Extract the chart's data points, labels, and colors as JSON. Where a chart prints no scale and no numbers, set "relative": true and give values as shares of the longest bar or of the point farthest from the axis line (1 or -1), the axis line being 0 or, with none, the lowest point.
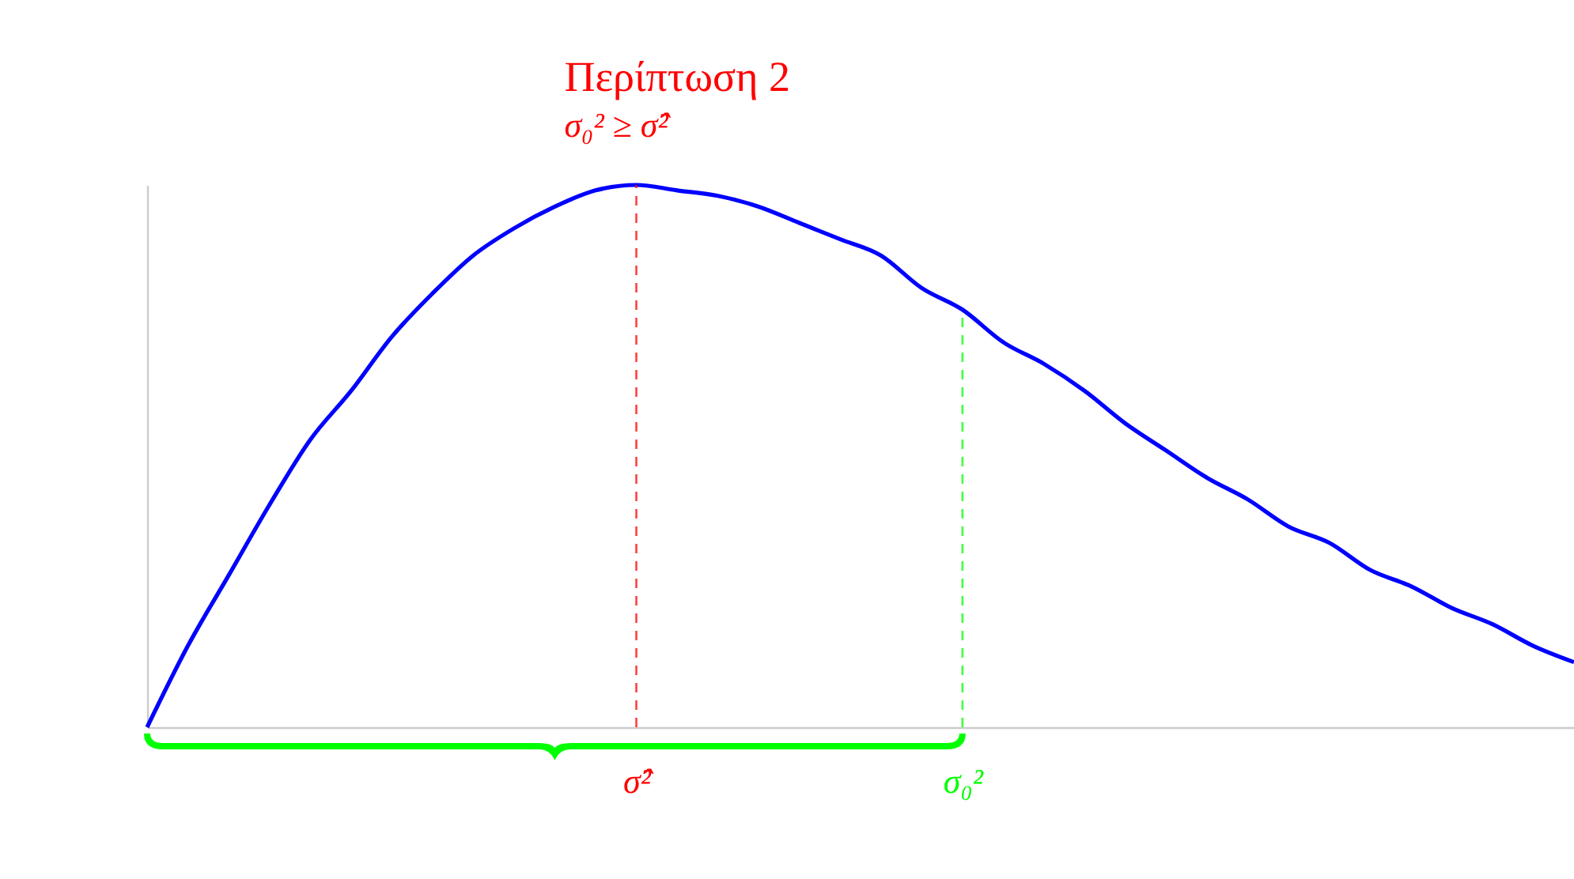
{
  "chart_data": {
    "type": "line",
    "title": "Περίπτωση 2",
    "subtitle": "σ₀² ≥ σ̂²",
    "relative": true,
    "categories": [
      null,
      null,
      null,
      null,
      null,
      null,
      null,
      null,
      null,
      null,
      null,
      null,
      "σ̂²",
      null,
      null,
      null,
      null,
      null,
      null,
      null,
      "σ₀²",
      null,
      null,
      null,
      null,
      null,
      null,
      null,
      null,
      null,
      null,
      null,
      null,
      null,
      null,
      null
    ],
    "series": [
      {
        "color": "#0000ff",
        "values": [
          0,
          0.15,
          0.28,
          0.41,
          0.53,
          0.62,
          0.72,
          0.8,
          0.87,
          0.92,
          0.96,
          0.99,
          1,
          0.99,
          0.98,
          0.96,
          0.93,
          0.9,
          0.87,
          0.81,
          0.77,
          0.71,
          0.67,
          0.62,
          0.56,
          0.51,
          0.46,
          0.42,
          0.37,
          0.34,
          0.29,
          0.26,
          0.22,
          0.19,
          0.15,
          0.12
        ]
      }
    ],
    "ref_lines": [
      {
        "axis": "x",
        "value": "σ̂²",
        "color": "#ff0000",
        "line_style": "dashed"
      },
      {
        "axis": "x",
        "value": "σ₀²",
        "color": "#00ff00",
        "line_style": "dashed"
      }
    ],
    "grid": false
  }
}
